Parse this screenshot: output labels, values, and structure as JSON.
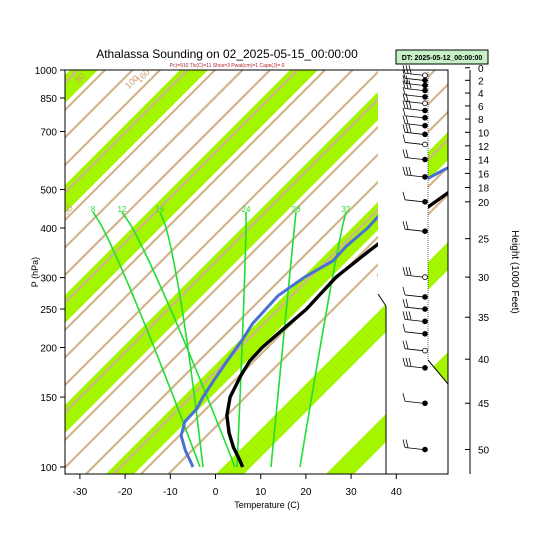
{
  "title": "Athalassa Sounding on 02_2025-05-15_00:00:00",
  "subtitle": "Pc)=910 Tlc(C)=11 Shox=3 Pwat(cm)=1 Cape(J)= 0",
  "dt_label": "DT: 2025-05-12_00:00:00",
  "colors": {
    "temperature": "#000000",
    "dewpoint": "#4a6fd6",
    "dry_adiabat": "#d2b48c",
    "band": "#a4f500",
    "moist_adiabat": "#22dd33",
    "mixing_ratio": "#22dd33",
    "label_orange": "#d2a070",
    "box_fill": "#c6f0c6"
  },
  "chart_data": {
    "type": "line",
    "xlabel": "Temperature (C)",
    "ylabel": "P (hPa)",
    "right_label": "Height (1000 Feet)",
    "x_ticks": [
      -30,
      -20,
      -10,
      0,
      10,
      20,
      30,
      40
    ],
    "y_ticks": [
      100,
      150,
      200,
      250,
      300,
      400,
      500,
      700,
      850,
      1000
    ],
    "height_ticks": [
      0,
      2,
      4,
      6,
      8,
      10,
      12,
      14,
      16,
      18,
      20,
      25,
      30,
      35,
      40,
      45,
      50
    ],
    "moist_labels": [
      "8",
      "12",
      "16",
      "24",
      "28",
      "32"
    ],
    "dry_labels": [
      "0",
      "10",
      "20",
      "30",
      "50",
      "80",
      "100",
      "160"
    ],
    "series": [
      {
        "key": "temperature",
        "points": [
          [
            19,
            1000
          ],
          [
            19.5,
            985
          ],
          [
            21,
            965
          ],
          [
            21.5,
            940
          ],
          [
            20,
            905
          ],
          [
            18,
            870
          ],
          [
            15,
            840
          ],
          [
            12,
            800
          ],
          [
            9,
            750
          ],
          [
            6,
            700
          ],
          [
            3,
            650
          ],
          [
            0,
            600
          ],
          [
            -2,
            550
          ],
          [
            -4,
            500
          ],
          [
            -6,
            450
          ],
          [
            -8,
            400
          ],
          [
            -10,
            350
          ],
          [
            -12,
            300
          ],
          [
            -12,
            275
          ],
          [
            -12,
            250
          ],
          [
            -13,
            225
          ],
          [
            -14,
            200
          ],
          [
            -14,
            185
          ],
          [
            -13,
            170
          ],
          [
            -11,
            150
          ],
          [
            -8,
            135
          ],
          [
            -4,
            122
          ],
          [
            0,
            112
          ],
          [
            4,
            104
          ],
          [
            6,
            100
          ]
        ]
      },
      {
        "key": "dewpoint",
        "points": [
          [
            13,
            980
          ],
          [
            12,
            960
          ],
          [
            8,
            950
          ],
          [
            2,
            945
          ],
          [
            3,
            900
          ],
          [
            5,
            870
          ],
          [
            4,
            850
          ],
          [
            1,
            820
          ],
          [
            0,
            800
          ],
          [
            -1,
            760
          ],
          [
            0,
            730
          ],
          [
            -1,
            700
          ],
          [
            -1,
            680
          ],
          [
            -2,
            650
          ],
          [
            -7,
            600
          ],
          [
            -10,
            560
          ],
          [
            -12,
            530
          ],
          [
            -13,
            490
          ],
          [
            -15,
            450
          ],
          [
            -15,
            400
          ],
          [
            -16,
            360
          ],
          [
            -16,
            330
          ],
          [
            -19,
            300
          ],
          [
            -21,
            270
          ],
          [
            -21,
            250
          ],
          [
            -21,
            230
          ],
          [
            -20,
            210
          ],
          [
            -19,
            185
          ],
          [
            -18,
            165
          ],
          [
            -17,
            150
          ],
          [
            -16,
            140
          ],
          [
            -16,
            130
          ],
          [
            -14,
            120
          ],
          [
            -10,
            110
          ],
          [
            -6,
            102
          ],
          [
            -5,
            100
          ]
        ]
      }
    ]
  },
  "height_profile": [
    {
      "h": 0.1,
      "wind": "calm"
    },
    {
      "h": 0.6,
      "wind": "calm"
    },
    {
      "h": 1.2,
      "wind": "calm"
    },
    {
      "h": 2.0,
      "wind": "calm"
    },
    {
      "h": 2.8,
      "wind": "calm"
    },
    {
      "h": 3.6,
      "wind": "calm"
    },
    {
      "h": 4.6,
      "wind": "calm"
    },
    {
      "h": 5.6,
      "wind": "calm"
    },
    {
      "h": 6.7,
      "wind": "calm"
    },
    {
      "h": 7.8,
      "wind": "calm"
    },
    {
      "h": 9.0,
      "wind": "calm"
    },
    {
      "h": 10.3,
      "wind": "calm"
    },
    {
      "h": 11.8,
      "wind": "calm"
    },
    {
      "h": 14.0,
      "wind": "calm"
    },
    {
      "h": 16.5,
      "wind": "calm"
    },
    {
      "h": 20.0,
      "wind": "calm"
    },
    {
      "h": 24.0,
      "wind": "calm"
    },
    {
      "h": 30.0,
      "wind": "calm"
    },
    {
      "h": 32.5,
      "wind": "calm"
    },
    {
      "h": 34.0,
      "wind": "calm"
    },
    {
      "h": 35.5,
      "wind": "calm"
    },
    {
      "h": 37.0,
      "wind": "calm"
    },
    {
      "h": 39.0,
      "wind": "calm"
    },
    {
      "h": 41.0,
      "wind": "calm"
    },
    {
      "h": 45.0,
      "wind": "calm"
    },
    {
      "h": 50.0,
      "wind": "calm"
    }
  ]
}
